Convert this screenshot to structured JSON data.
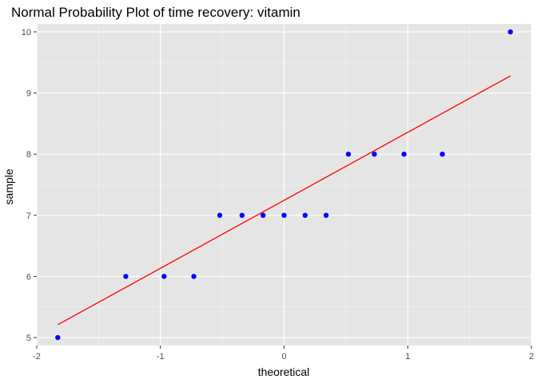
{
  "chart_data": {
    "type": "scatter",
    "title": "Normal Probability Plot of time recovery: vitamin",
    "xlabel": "theoretical",
    "ylabel": "sample",
    "xlim": [
      -2.0,
      2.0
    ],
    "ylim": [
      4.87,
      10.13
    ],
    "x_ticks": [
      -2,
      -1,
      0,
      1,
      2
    ],
    "x_tick_labels": [
      "-2",
      "-1",
      "0",
      "1",
      "2"
    ],
    "y_ticks": [
      5,
      6,
      7,
      8,
      9,
      10
    ],
    "y_tick_labels": [
      "5",
      "6",
      "7",
      "8",
      "9",
      "10"
    ],
    "grid": true,
    "series": [
      {
        "kind": "points",
        "color": "#0000ff",
        "points": [
          {
            "x": -1.83,
            "y": 5
          },
          {
            "x": -1.28,
            "y": 6
          },
          {
            "x": -0.97,
            "y": 6
          },
          {
            "x": -0.73,
            "y": 6
          },
          {
            "x": -0.52,
            "y": 7
          },
          {
            "x": -0.34,
            "y": 7
          },
          {
            "x": -0.17,
            "y": 7
          },
          {
            "x": 0.0,
            "y": 7
          },
          {
            "x": 0.17,
            "y": 7
          },
          {
            "x": 0.34,
            "y": 7
          },
          {
            "x": 0.52,
            "y": 8
          },
          {
            "x": 0.73,
            "y": 8
          },
          {
            "x": 0.97,
            "y": 8
          },
          {
            "x": 1.28,
            "y": 8
          },
          {
            "x": 1.83,
            "y": 10
          }
        ]
      },
      {
        "kind": "line",
        "color": "#ff0000",
        "points": [
          {
            "x": -1.83,
            "y": 5.21
          },
          {
            "x": 1.83,
            "y": 9.28
          }
        ]
      }
    ]
  }
}
